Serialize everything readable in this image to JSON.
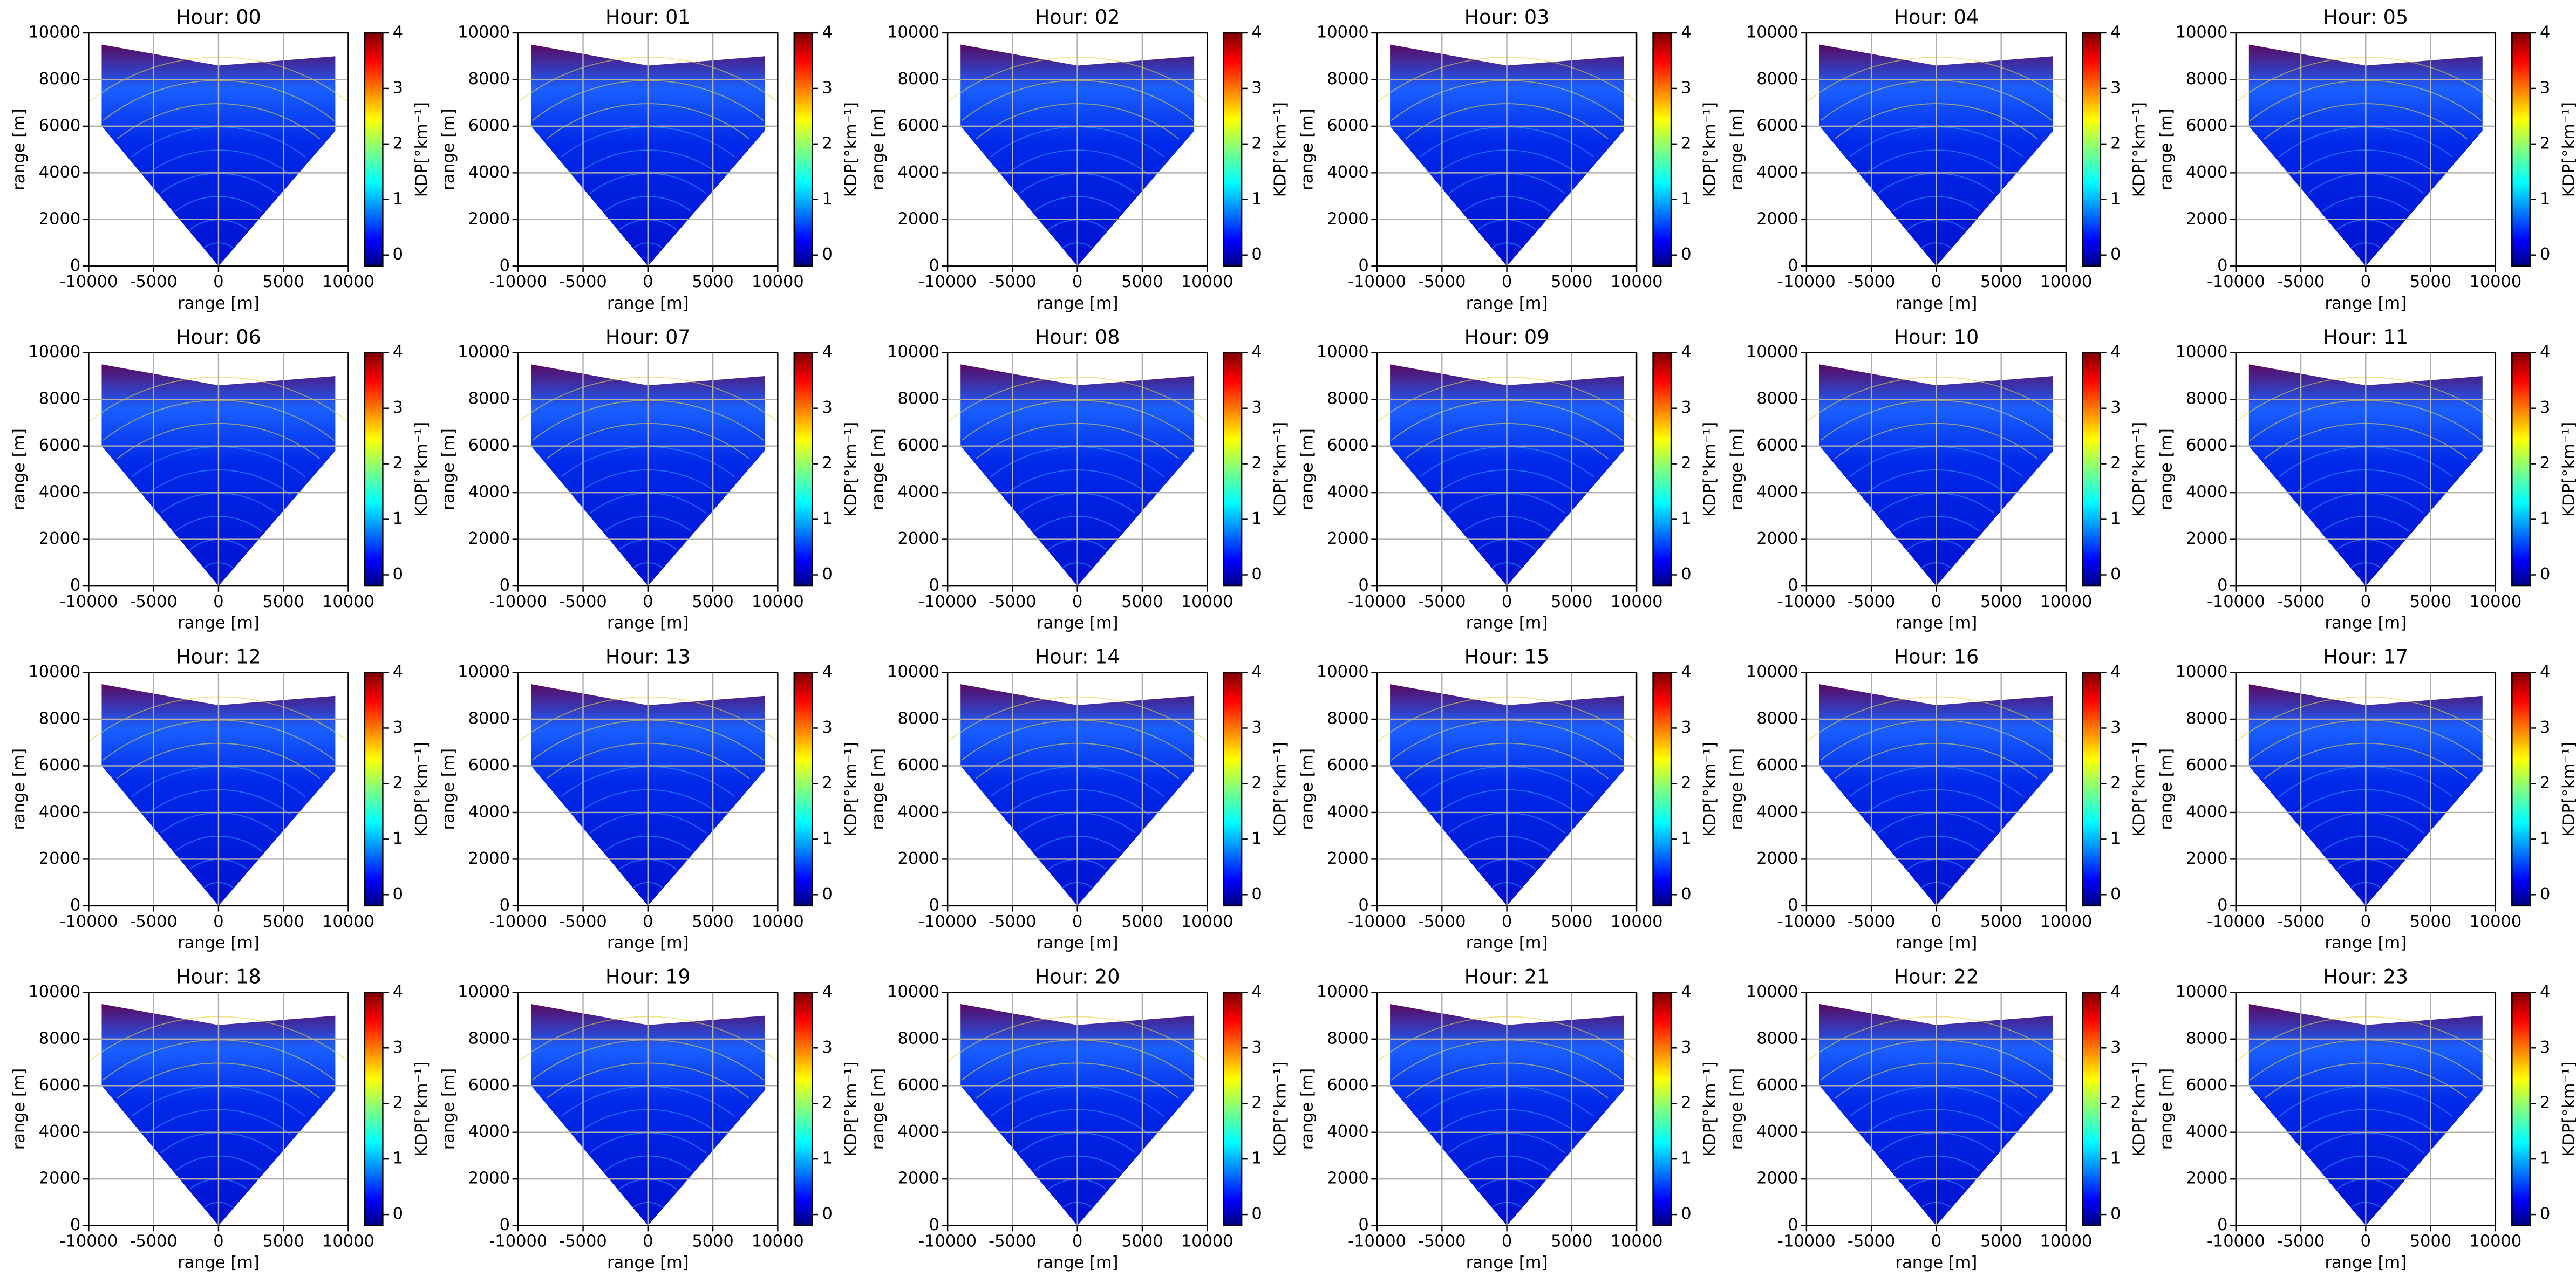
{
  "chart_data": [
    {
      "type": "heatmap",
      "title": "Hour: 00",
      "xlabel": "range [m]",
      "ylabel": "range [m]",
      "colorbar_label": "KDP[°km⁻¹]",
      "colormap": "jet",
      "grid": true,
      "xlim": [
        -10000,
        10000
      ],
      "ylim": [
        0,
        10000
      ],
      "xticks": [
        -10000,
        -5000,
        0,
        5000,
        10000
      ],
      "yticks": [
        0,
        2000,
        4000,
        6000,
        8000,
        10000
      ],
      "clim": [
        -0.2,
        4
      ],
      "cticks": [
        0,
        1,
        2,
        3,
        4
      ]
    },
    {
      "type": "heatmap",
      "title": "Hour: 01",
      "xlabel": "range [m]",
      "ylabel": "range [m]",
      "colorbar_label": "KDP[°km⁻¹]",
      "colormap": "jet",
      "grid": true,
      "xlim": [
        -10000,
        10000
      ],
      "ylim": [
        0,
        10000
      ],
      "xticks": [
        -10000,
        -5000,
        0,
        5000,
        10000
      ],
      "yticks": [
        0,
        2000,
        4000,
        6000,
        8000,
        10000
      ],
      "clim": [
        -0.2,
        4
      ],
      "cticks": [
        0,
        1,
        2,
        3,
        4
      ]
    },
    {
      "type": "heatmap",
      "title": "Hour: 02",
      "xlabel": "range [m]",
      "ylabel": "range [m]",
      "colorbar_label": "KDP[°km⁻¹]",
      "colormap": "jet",
      "grid": true,
      "xlim": [
        -10000,
        10000
      ],
      "ylim": [
        0,
        10000
      ],
      "xticks": [
        -10000,
        -5000,
        0,
        5000,
        10000
      ],
      "yticks": [
        0,
        2000,
        4000,
        6000,
        8000,
        10000
      ],
      "clim": [
        -0.2,
        4
      ],
      "cticks": [
        0,
        1,
        2,
        3,
        4
      ]
    },
    {
      "type": "heatmap",
      "title": "Hour: 03",
      "xlabel": "range [m]",
      "ylabel": "range [m]",
      "colorbar_label": "KDP[°km⁻¹]",
      "colormap": "jet",
      "grid": true,
      "xlim": [
        -10000,
        10000
      ],
      "ylim": [
        0,
        10000
      ],
      "xticks": [
        -10000,
        -5000,
        0,
        5000,
        10000
      ],
      "yticks": [
        0,
        2000,
        4000,
        6000,
        8000,
        10000
      ],
      "clim": [
        -0.2,
        4
      ],
      "cticks": [
        0,
        1,
        2,
        3,
        4
      ]
    },
    {
      "type": "heatmap",
      "title": "Hour: 04",
      "xlabel": "range [m]",
      "ylabel": "range [m]",
      "colorbar_label": "KDP[°km⁻¹]",
      "colormap": "jet",
      "grid": true,
      "xlim": [
        -10000,
        10000
      ],
      "ylim": [
        0,
        10000
      ],
      "xticks": [
        -10000,
        -5000,
        0,
        5000,
        10000
      ],
      "yticks": [
        0,
        2000,
        4000,
        6000,
        8000,
        10000
      ],
      "clim": [
        -0.2,
        4
      ],
      "cticks": [
        0,
        1,
        2,
        3,
        4
      ]
    },
    {
      "type": "heatmap",
      "title": "Hour: 05",
      "xlabel": "range [m]",
      "ylabel": "range [m]",
      "colorbar_label": "KDP[°km⁻¹]",
      "colormap": "jet",
      "grid": true,
      "xlim": [
        -10000,
        10000
      ],
      "ylim": [
        0,
        10000
      ],
      "xticks": [
        -10000,
        -5000,
        0,
        5000,
        10000
      ],
      "yticks": [
        0,
        2000,
        4000,
        6000,
        8000,
        10000
      ],
      "clim": [
        -0.2,
        4
      ],
      "cticks": [
        0,
        1,
        2,
        3,
        4
      ]
    },
    {
      "type": "heatmap",
      "title": "Hour: 06",
      "xlabel": "range [m]",
      "ylabel": "range [m]",
      "colorbar_label": "KDP[°km⁻¹]",
      "colormap": "jet",
      "grid": true,
      "xlim": [
        -10000,
        10000
      ],
      "ylim": [
        0,
        10000
      ],
      "xticks": [
        -10000,
        -5000,
        0,
        5000,
        10000
      ],
      "yticks": [
        0,
        2000,
        4000,
        6000,
        8000,
        10000
      ],
      "clim": [
        -0.2,
        4
      ],
      "cticks": [
        0,
        1,
        2,
        3,
        4
      ]
    },
    {
      "type": "heatmap",
      "title": "Hour: 07",
      "xlabel": "range [m]",
      "ylabel": "range [m]",
      "colorbar_label": "KDP[°km⁻¹]",
      "colormap": "jet",
      "grid": true,
      "xlim": [
        -10000,
        10000
      ],
      "ylim": [
        0,
        10000
      ],
      "xticks": [
        -10000,
        -5000,
        0,
        5000,
        10000
      ],
      "yticks": [
        0,
        2000,
        4000,
        6000,
        8000,
        10000
      ],
      "clim": [
        -0.2,
        4
      ],
      "cticks": [
        0,
        1,
        2,
        3,
        4
      ]
    },
    {
      "type": "heatmap",
      "title": "Hour: 08",
      "xlabel": "range [m]",
      "ylabel": "range [m]",
      "colorbar_label": "KDP[°km⁻¹]",
      "colormap": "jet",
      "grid": true,
      "xlim": [
        -10000,
        10000
      ],
      "ylim": [
        0,
        10000
      ],
      "xticks": [
        -10000,
        -5000,
        0,
        5000,
        10000
      ],
      "yticks": [
        0,
        2000,
        4000,
        6000,
        8000,
        10000
      ],
      "clim": [
        -0.2,
        4
      ],
      "cticks": [
        0,
        1,
        2,
        3,
        4
      ]
    },
    {
      "type": "heatmap",
      "title": "Hour: 09",
      "xlabel": "range [m]",
      "ylabel": "range [m]",
      "colorbar_label": "KDP[°km⁻¹]",
      "colormap": "jet",
      "grid": true,
      "xlim": [
        -10000,
        10000
      ],
      "ylim": [
        0,
        10000
      ],
      "xticks": [
        -10000,
        -5000,
        0,
        5000,
        10000
      ],
      "yticks": [
        0,
        2000,
        4000,
        6000,
        8000,
        10000
      ],
      "clim": [
        -0.2,
        4
      ],
      "cticks": [
        0,
        1,
        2,
        3,
        4
      ]
    },
    {
      "type": "heatmap",
      "title": "Hour: 10",
      "xlabel": "range [m]",
      "ylabel": "range [m]",
      "colorbar_label": "KDP[°km⁻¹]",
      "colormap": "jet",
      "grid": true,
      "xlim": [
        -10000,
        10000
      ],
      "ylim": [
        0,
        10000
      ],
      "xticks": [
        -10000,
        -5000,
        0,
        5000,
        10000
      ],
      "yticks": [
        0,
        2000,
        4000,
        6000,
        8000,
        10000
      ],
      "clim": [
        -0.2,
        4
      ],
      "cticks": [
        0,
        1,
        2,
        3,
        4
      ]
    },
    {
      "type": "heatmap",
      "title": "Hour: 11",
      "xlabel": "range [m]",
      "ylabel": "range [m]",
      "colorbar_label": "KDP[°km⁻¹]",
      "colormap": "jet",
      "grid": true,
      "xlim": [
        -10000,
        10000
      ],
      "ylim": [
        0,
        10000
      ],
      "xticks": [
        -10000,
        -5000,
        0,
        5000,
        10000
      ],
      "yticks": [
        0,
        2000,
        4000,
        6000,
        8000,
        10000
      ],
      "clim": [
        -0.2,
        4
      ],
      "cticks": [
        0,
        1,
        2,
        3,
        4
      ]
    },
    {
      "type": "heatmap",
      "title": "Hour: 12",
      "xlabel": "range [m]",
      "ylabel": "range [m]",
      "colorbar_label": "KDP[°km⁻¹]",
      "colormap": "jet",
      "grid": true,
      "xlim": [
        -10000,
        10000
      ],
      "ylim": [
        0,
        10000
      ],
      "xticks": [
        -10000,
        -5000,
        0,
        5000,
        10000
      ],
      "yticks": [
        0,
        2000,
        4000,
        6000,
        8000,
        10000
      ],
      "clim": [
        -0.2,
        4
      ],
      "cticks": [
        0,
        1,
        2,
        3,
        4
      ]
    },
    {
      "type": "heatmap",
      "title": "Hour: 13",
      "xlabel": "range [m]",
      "ylabel": "range [m]",
      "colorbar_label": "KDP[°km⁻¹]",
      "colormap": "jet",
      "grid": true,
      "xlim": [
        -10000,
        10000
      ],
      "ylim": [
        0,
        10000
      ],
      "xticks": [
        -10000,
        -5000,
        0,
        5000,
        10000
      ],
      "yticks": [
        0,
        2000,
        4000,
        6000,
        8000,
        10000
      ],
      "clim": [
        -0.2,
        4
      ],
      "cticks": [
        0,
        1,
        2,
        3,
        4
      ]
    },
    {
      "type": "heatmap",
      "title": "Hour: 14",
      "xlabel": "range [m]",
      "ylabel": "range [m]",
      "colorbar_label": "KDP[°km⁻¹]",
      "colormap": "jet",
      "grid": true,
      "xlim": [
        -10000,
        10000
      ],
      "ylim": [
        0,
        10000
      ],
      "xticks": [
        -10000,
        -5000,
        0,
        5000,
        10000
      ],
      "yticks": [
        0,
        2000,
        4000,
        6000,
        8000,
        10000
      ],
      "clim": [
        -0.2,
        4
      ],
      "cticks": [
        0,
        1,
        2,
        3,
        4
      ]
    },
    {
      "type": "heatmap",
      "title": "Hour: 15",
      "xlabel": "range [m]",
      "ylabel": "range [m]",
      "colorbar_label": "KDP[°km⁻¹]",
      "colormap": "jet",
      "grid": true,
      "xlim": [
        -10000,
        10000
      ],
      "ylim": [
        0,
        10000
      ],
      "xticks": [
        -10000,
        -5000,
        0,
        5000,
        10000
      ],
      "yticks": [
        0,
        2000,
        4000,
        6000,
        8000,
        10000
      ],
      "clim": [
        -0.2,
        4
      ],
      "cticks": [
        0,
        1,
        2,
        3,
        4
      ]
    },
    {
      "type": "heatmap",
      "title": "Hour: 16",
      "xlabel": "range [m]",
      "ylabel": "range [m]",
      "colorbar_label": "KDP[°km⁻¹]",
      "colormap": "jet",
      "grid": true,
      "xlim": [
        -10000,
        10000
      ],
      "ylim": [
        0,
        10000
      ],
      "xticks": [
        -10000,
        -5000,
        0,
        5000,
        10000
      ],
      "yticks": [
        0,
        2000,
        4000,
        6000,
        8000,
        10000
      ],
      "clim": [
        -0.2,
        4
      ],
      "cticks": [
        0,
        1,
        2,
        3,
        4
      ]
    },
    {
      "type": "heatmap",
      "title": "Hour: 17",
      "xlabel": "range [m]",
      "ylabel": "range [m]",
      "colorbar_label": "KDP[°km⁻¹]",
      "colormap": "jet",
      "grid": true,
      "xlim": [
        -10000,
        10000
      ],
      "ylim": [
        0,
        10000
      ],
      "xticks": [
        -10000,
        -5000,
        0,
        5000,
        10000
      ],
      "yticks": [
        0,
        2000,
        4000,
        6000,
        8000,
        10000
      ],
      "clim": [
        -0.2,
        4
      ],
      "cticks": [
        0,
        1,
        2,
        3,
        4
      ]
    },
    {
      "type": "heatmap",
      "title": "Hour: 18",
      "xlabel": "range [m]",
      "ylabel": "range [m]",
      "colorbar_label": "KDP[°km⁻¹]",
      "colormap": "jet",
      "grid": true,
      "xlim": [
        -10000,
        10000
      ],
      "ylim": [
        0,
        10000
      ],
      "xticks": [
        -10000,
        -5000,
        0,
        5000,
        10000
      ],
      "yticks": [
        0,
        2000,
        4000,
        6000,
        8000,
        10000
      ],
      "clim": [
        -0.2,
        4
      ],
      "cticks": [
        0,
        1,
        2,
        3,
        4
      ]
    },
    {
      "type": "heatmap",
      "title": "Hour: 19",
      "xlabel": "range [m]",
      "ylabel": "range [m]",
      "colorbar_label": "KDP[°km⁻¹]",
      "colormap": "jet",
      "grid": true,
      "xlim": [
        -10000,
        10000
      ],
      "ylim": [
        0,
        10000
      ],
      "xticks": [
        -10000,
        -5000,
        0,
        5000,
        10000
      ],
      "yticks": [
        0,
        2000,
        4000,
        6000,
        8000,
        10000
      ],
      "clim": [
        -0.2,
        4
      ],
      "cticks": [
        0,
        1,
        2,
        3,
        4
      ]
    },
    {
      "type": "heatmap",
      "title": "Hour: 20",
      "xlabel": "range [m]",
      "ylabel": "range [m]",
      "colorbar_label": "KDP[°km⁻¹]",
      "colormap": "jet",
      "grid": true,
      "xlim": [
        -10000,
        10000
      ],
      "ylim": [
        0,
        10000
      ],
      "xticks": [
        -10000,
        -5000,
        0,
        5000,
        10000
      ],
      "yticks": [
        0,
        2000,
        4000,
        6000,
        8000,
        10000
      ],
      "clim": [
        -0.2,
        4
      ],
      "cticks": [
        0,
        1,
        2,
        3,
        4
      ]
    },
    {
      "type": "heatmap",
      "title": "Hour: 21",
      "xlabel": "range [m]",
      "ylabel": "range [m]",
      "colorbar_label": "KDP[°km⁻¹]",
      "colormap": "jet",
      "grid": true,
      "xlim": [
        -10000,
        10000
      ],
      "ylim": [
        0,
        10000
      ],
      "xticks": [
        -10000,
        -5000,
        0,
        5000,
        10000
      ],
      "yticks": [
        0,
        2000,
        4000,
        6000,
        8000,
        10000
      ],
      "clim": [
        -0.2,
        4
      ],
      "cticks": [
        0,
        1,
        2,
        3,
        4
      ]
    },
    {
      "type": "heatmap",
      "title": "Hour: 22",
      "xlabel": "range [m]",
      "ylabel": "range [m]",
      "colorbar_label": "KDP[°km⁻¹]",
      "colormap": "jet",
      "grid": true,
      "xlim": [
        -10000,
        10000
      ],
      "ylim": [
        0,
        10000
      ],
      "xticks": [
        -10000,
        -5000,
        0,
        5000,
        10000
      ],
      "yticks": [
        0,
        2000,
        4000,
        6000,
        8000,
        10000
      ],
      "clim": [
        -0.2,
        4
      ],
      "cticks": [
        0,
        1,
        2,
        3,
        4
      ]
    },
    {
      "type": "heatmap",
      "title": "Hour: 23",
      "xlabel": "range [m]",
      "ylabel": "range [m]",
      "colorbar_label": "KDP[°km⁻¹]",
      "colormap": "jet",
      "grid": true,
      "xlim": [
        -10000,
        10000
      ],
      "ylim": [
        0,
        10000
      ],
      "xticks": [
        -10000,
        -5000,
        0,
        5000,
        10000
      ],
      "yticks": [
        0,
        2000,
        4000,
        6000,
        8000,
        10000
      ],
      "clim": [
        -0.2,
        4
      ],
      "cticks": [
        0,
        1,
        2,
        3,
        4
      ]
    }
  ]
}
